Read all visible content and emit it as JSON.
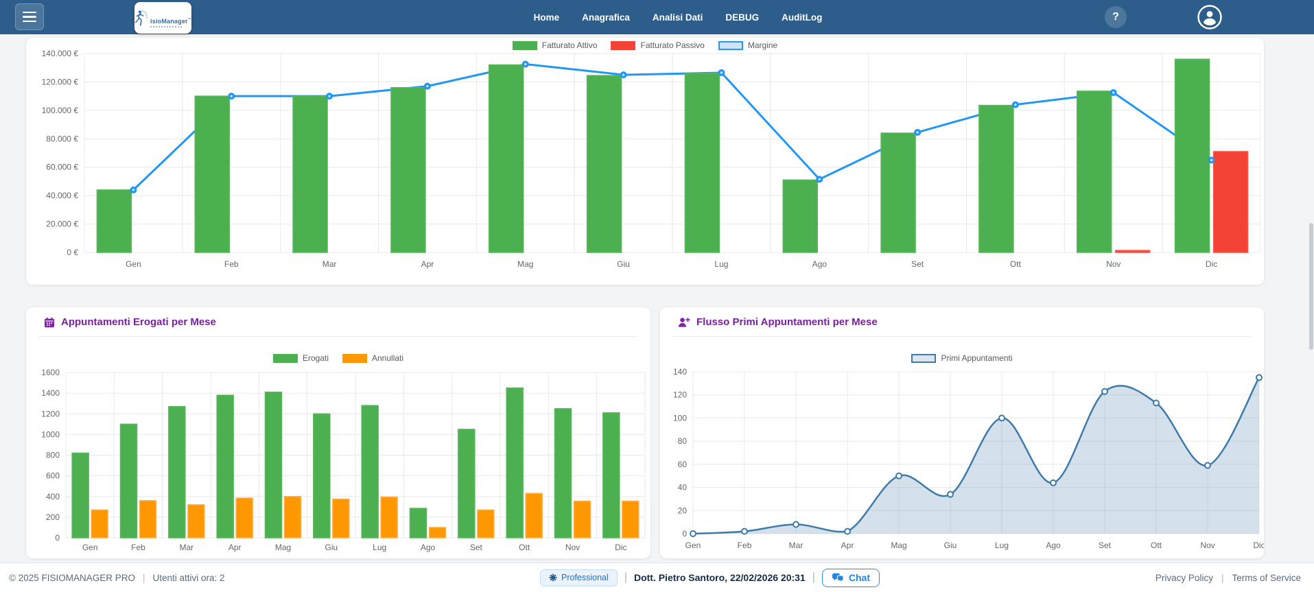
{
  "colors": {
    "navbar_bg": "#2d5d8a",
    "card_title": "#7b1fa2",
    "accent_blue": "#2196f3",
    "green": "#4caf50",
    "orange": "#ff9800",
    "red": "#f44336",
    "flow_blue": "#3d7aa8"
  },
  "navbar": {
    "brand": "isioManager",
    "brand_tm": "™",
    "links": [
      "Home",
      "Anagrafica",
      "Analisi Dati",
      "DEBUG",
      "AuditLog"
    ],
    "help_label": "?"
  },
  "charts": {
    "revenue": {
      "legend": [
        {
          "label": "Fatturato Attivo",
          "swatch": "#4caf50"
        },
        {
          "label": "Fatturato Passivo",
          "swatch": "#f44336"
        },
        {
          "label": "Margine",
          "swatch": "#cfe3f7",
          "swatch_border": "#2196f3"
        }
      ]
    },
    "appointments": {
      "title": "Appuntamenti Erogati per Mese",
      "legend": [
        {
          "label": "Erogati",
          "swatch": "#4caf50"
        },
        {
          "label": "Annullati",
          "swatch": "#ff9800"
        }
      ]
    },
    "flow": {
      "title": "Flusso Primi Appuntamenti per Mese",
      "legend": [
        {
          "label": "Primi Appuntamenti",
          "swatch": "#dbe4ef",
          "swatch_border": "#3d7aa8"
        }
      ]
    }
  },
  "chart_data": [
    {
      "id": "revenue",
      "type": "bar",
      "categories": [
        "Gen",
        "Feb",
        "Mar",
        "Apr",
        "Mag",
        "Giu",
        "Lug",
        "Ago",
        "Set",
        "Ott",
        "Nov",
        "Dic"
      ],
      "ylim": [
        0,
        140000
      ],
      "grid": true,
      "legend_position": "top",
      "yticks": [
        {
          "value": 0,
          "label": "0 €"
        },
        {
          "value": 20000,
          "label": "20.000 €"
        },
        {
          "value": 40000,
          "label": "40.000 €"
        },
        {
          "value": 60000,
          "label": "60.000 €"
        },
        {
          "value": 80000,
          "label": "80.000 €"
        },
        {
          "value": 100000,
          "label": "100.000 €"
        },
        {
          "value": 120000,
          "label": "120.000 €"
        },
        {
          "value": 140000,
          "label": "140.000 €"
        }
      ],
      "series": [
        {
          "name": "Fatturato Attivo",
          "type": "bar",
          "color": "#4caf50",
          "border": "#58b75c",
          "values": [
            44000,
            110000,
            110000,
            116000,
            132000,
            124500,
            126000,
            51000,
            84000,
            103500,
            113500,
            136000
          ]
        },
        {
          "name": "Fatturato Passivo",
          "type": "bar",
          "color": "#f44336",
          "border": "#f6594e",
          "values": [
            0,
            0,
            0,
            0,
            0,
            0,
            0,
            0,
            0,
            0,
            1400,
            71000
          ]
        },
        {
          "name": "Margine",
          "type": "line",
          "color": "#2196f3",
          "values": [
            44000,
            110000,
            110000,
            117000,
            132500,
            125000,
            126500,
            51500,
            84500,
            104000,
            112500,
            65000
          ]
        }
      ]
    },
    {
      "id": "appointments",
      "type": "bar",
      "title": "Appuntamenti Erogati per Mese",
      "categories": [
        "Gen",
        "Feb",
        "Mar",
        "Apr",
        "Mag",
        "Giu",
        "Lug",
        "Ago",
        "Set",
        "Ott",
        "Nov",
        "Dic"
      ],
      "ylim": [
        0,
        1600
      ],
      "grid": true,
      "legend_position": "top",
      "yticks": [
        {
          "value": 0,
          "label": "0"
        },
        {
          "value": 200,
          "label": "200"
        },
        {
          "value": 400,
          "label": "400"
        },
        {
          "value": 600,
          "label": "600"
        },
        {
          "value": 800,
          "label": "800"
        },
        {
          "value": 1000,
          "label": "1000"
        },
        {
          "value": 1200,
          "label": "1200"
        },
        {
          "value": 1400,
          "label": "1400"
        },
        {
          "value": 1600,
          "label": "1600"
        }
      ],
      "series": [
        {
          "name": "Erogati",
          "type": "bar",
          "color": "#4caf50",
          "border": "#58b75c",
          "values": [
            820,
            1100,
            1270,
            1380,
            1410,
            1200,
            1280,
            285,
            1050,
            1450,
            1250,
            1210
          ]
        },
        {
          "name": "Annullati",
          "type": "bar",
          "color": "#ff9800",
          "border": "#ffb04d",
          "values": [
            270,
            360,
            320,
            385,
            400,
            375,
            395,
            100,
            270,
            430,
            355,
            355
          ]
        }
      ]
    },
    {
      "id": "flow",
      "type": "area",
      "title": "Flusso Primi Appuntamenti per Mese",
      "categories": [
        "Gen",
        "Feb",
        "Mar",
        "Apr",
        "Mag",
        "Giu",
        "Lug",
        "Ago",
        "Set",
        "Ott",
        "Nov",
        "Dic"
      ],
      "ylim": [
        0,
        140
      ],
      "grid": true,
      "legend_position": "top",
      "yticks": [
        {
          "value": 0,
          "label": "0"
        },
        {
          "value": 20,
          "label": "20"
        },
        {
          "value": 40,
          "label": "40"
        },
        {
          "value": 60,
          "label": "60"
        },
        {
          "value": 80,
          "label": "80"
        },
        {
          "value": 100,
          "label": "100"
        },
        {
          "value": 120,
          "label": "120"
        },
        {
          "value": 140,
          "label": "140"
        }
      ],
      "series": [
        {
          "name": "Primi Appuntamenti",
          "type": "area",
          "color": "#3d7aa8",
          "fill": "rgba(99,143,182,0.28)",
          "pointStyle": "hollow",
          "values": [
            0,
            2,
            8,
            2,
            50,
            34,
            100,
            44,
            123,
            113,
            59,
            135
          ]
        }
      ]
    }
  ],
  "footer": {
    "copyright": "© 2025 FISIOMANAGER PRO",
    "active_users": "Utenti attivi ora: 2",
    "separator": "|",
    "plan_badge": "Professional",
    "user_info": "Dott. Pietro Santoro, 22/02/2026 20:31",
    "chat_label": "Chat",
    "privacy_link": "Privacy Policy",
    "terms_link": "Terms of Service"
  }
}
